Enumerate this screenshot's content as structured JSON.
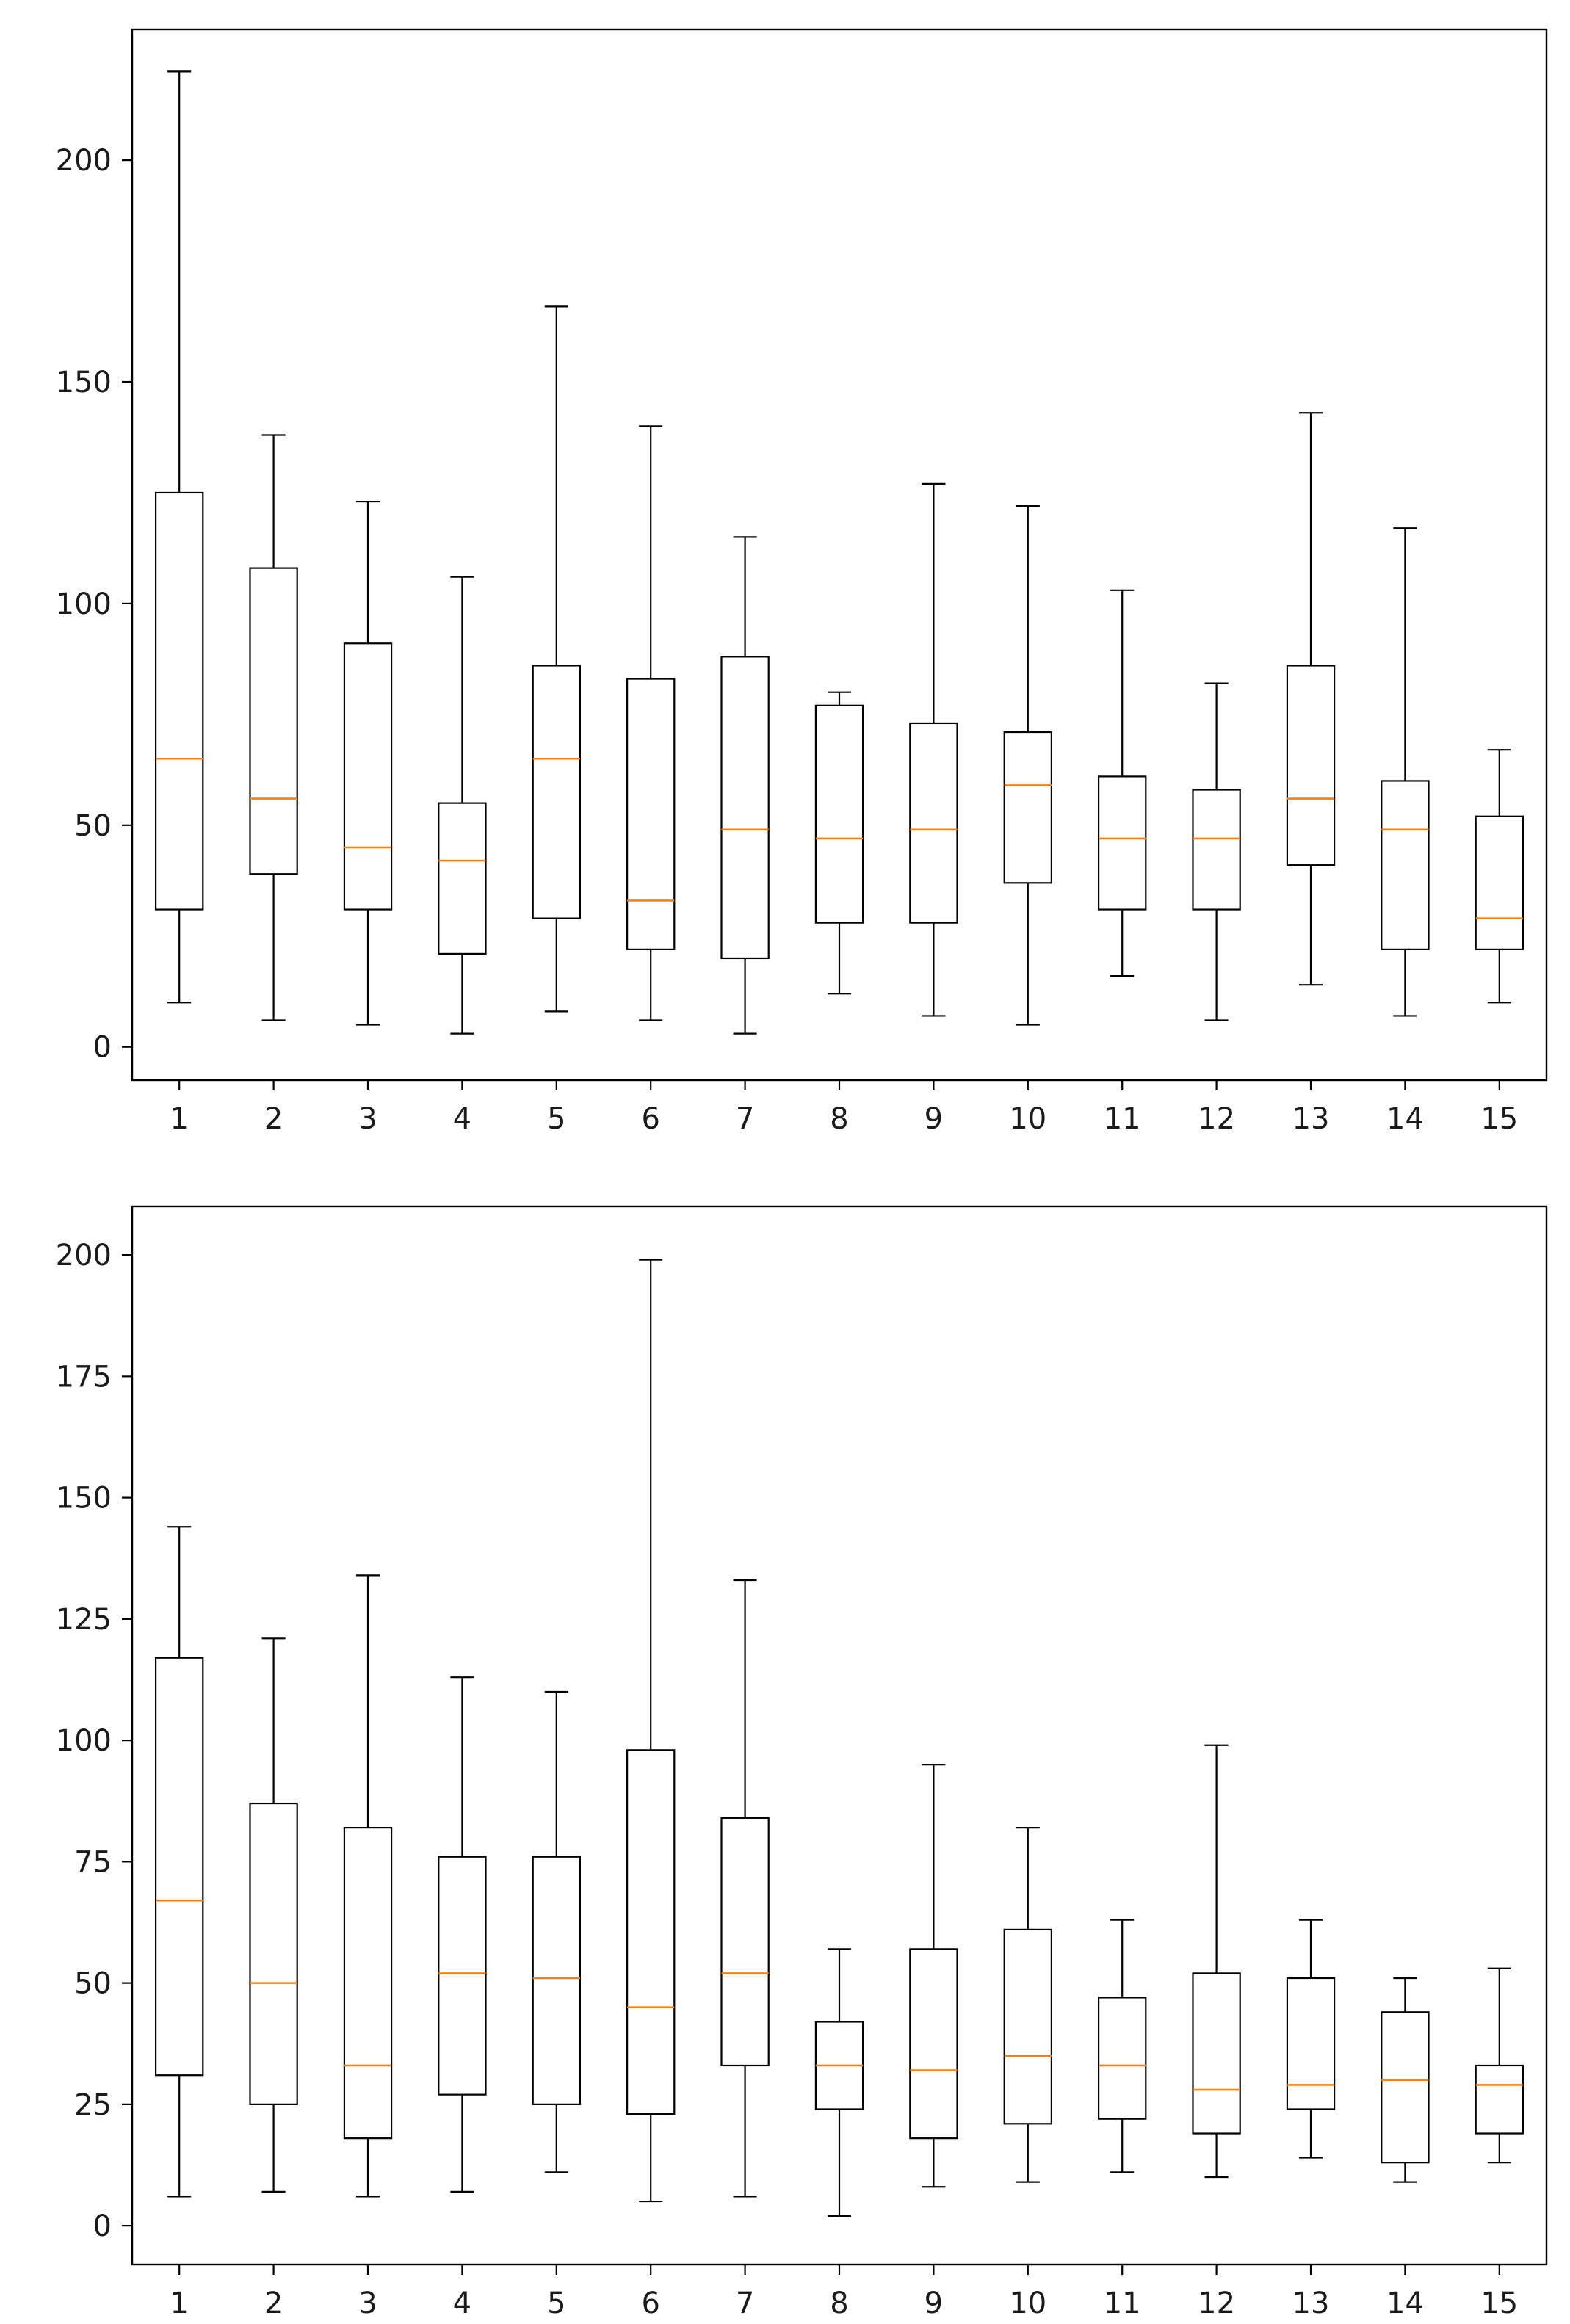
{
  "chart_data": [
    {
      "type": "box",
      "title": "",
      "xlabel": "",
      "ylabel": "",
      "categories": [
        "1",
        "2",
        "3",
        "4",
        "5",
        "6",
        "7",
        "8",
        "9",
        "10",
        "11",
        "12",
        "13",
        "14",
        "15"
      ],
      "yticks": [
        0,
        50,
        100,
        150,
        200
      ],
      "ylim": [
        -7.5,
        229.5
      ],
      "boxes": [
        {
          "whislo": 10,
          "q1": 31,
          "med": 65,
          "q3": 125,
          "whishi": 220
        },
        {
          "whislo": 6,
          "q1": 39,
          "med": 56,
          "q3": 108,
          "whishi": 138
        },
        {
          "whislo": 5,
          "q1": 31,
          "med": 45,
          "q3": 91,
          "whishi": 123
        },
        {
          "whislo": 3,
          "q1": 21,
          "med": 42,
          "q3": 55,
          "whishi": 106
        },
        {
          "whislo": 8,
          "q1": 29,
          "med": 65,
          "q3": 86,
          "whishi": 167
        },
        {
          "whislo": 6,
          "q1": 22,
          "med": 33,
          "q3": 83,
          "whishi": 140
        },
        {
          "whislo": 3,
          "q1": 20,
          "med": 49,
          "q3": 88,
          "whishi": 115
        },
        {
          "whislo": 12,
          "q1": 28,
          "med": 47,
          "q3": 77,
          "whishi": 80
        },
        {
          "whislo": 7,
          "q1": 28,
          "med": 49,
          "q3": 73,
          "whishi": 127
        },
        {
          "whislo": 5,
          "q1": 37,
          "med": 59,
          "q3": 71,
          "whishi": 122
        },
        {
          "whislo": 16,
          "q1": 31,
          "med": 47,
          "q3": 61,
          "whishi": 103
        },
        {
          "whislo": 6,
          "q1": 31,
          "med": 47,
          "q3": 58,
          "whishi": 82
        },
        {
          "whislo": 14,
          "q1": 41,
          "med": 56,
          "q3": 86,
          "whishi": 143
        },
        {
          "whislo": 7,
          "q1": 22,
          "med": 49,
          "q3": 60,
          "whishi": 117
        },
        {
          "whislo": 10,
          "q1": 22,
          "med": 29,
          "q3": 52,
          "whishi": 67
        }
      ]
    },
    {
      "type": "box",
      "title": "",
      "xlabel": "",
      "ylabel": "",
      "categories": [
        "1",
        "2",
        "3",
        "4",
        "5",
        "6",
        "7",
        "8",
        "9",
        "10",
        "11",
        "12",
        "13",
        "14",
        "15"
      ],
      "yticks": [
        0,
        25,
        50,
        75,
        100,
        125,
        150,
        175,
        200
      ],
      "ylim": [
        -8,
        210
      ],
      "boxes": [
        {
          "whislo": 6,
          "q1": 31,
          "med": 67,
          "q3": 117,
          "whishi": 144
        },
        {
          "whislo": 7,
          "q1": 25,
          "med": 50,
          "q3": 87,
          "whishi": 121
        },
        {
          "whislo": 6,
          "q1": 18,
          "med": 33,
          "q3": 82,
          "whishi": 134
        },
        {
          "whislo": 7,
          "q1": 27,
          "med": 52,
          "q3": 76,
          "whishi": 113
        },
        {
          "whislo": 11,
          "q1": 25,
          "med": 51,
          "q3": 76,
          "whishi": 110
        },
        {
          "whislo": 5,
          "q1": 23,
          "med": 45,
          "q3": 98,
          "whishi": 199
        },
        {
          "whislo": 6,
          "q1": 33,
          "med": 52,
          "q3": 84,
          "whishi": 133
        },
        {
          "whislo": 2,
          "q1": 24,
          "med": 33,
          "q3": 42,
          "whishi": 57
        },
        {
          "whislo": 8,
          "q1": 18,
          "med": 32,
          "q3": 57,
          "whishi": 95
        },
        {
          "whislo": 9,
          "q1": 21,
          "med": 35,
          "q3": 61,
          "whishi": 82
        },
        {
          "whislo": 11,
          "q1": 22,
          "med": 33,
          "q3": 47,
          "whishi": 63
        },
        {
          "whislo": 10,
          "q1": 19,
          "med": 28,
          "q3": 52,
          "whishi": 99
        },
        {
          "whislo": 14,
          "q1": 24,
          "med": 29,
          "q3": 51,
          "whishi": 63
        },
        {
          "whislo": 9,
          "q1": 13,
          "med": 30,
          "q3": 44,
          "whishi": 51
        },
        {
          "whislo": 13,
          "q1": 19,
          "med": 29,
          "q3": 33,
          "whishi": 53
        }
      ]
    }
  ],
  "colors": {
    "median": "#ff7f0e",
    "box": "#000000",
    "axes": "#000000",
    "background": "#ffffff"
  }
}
